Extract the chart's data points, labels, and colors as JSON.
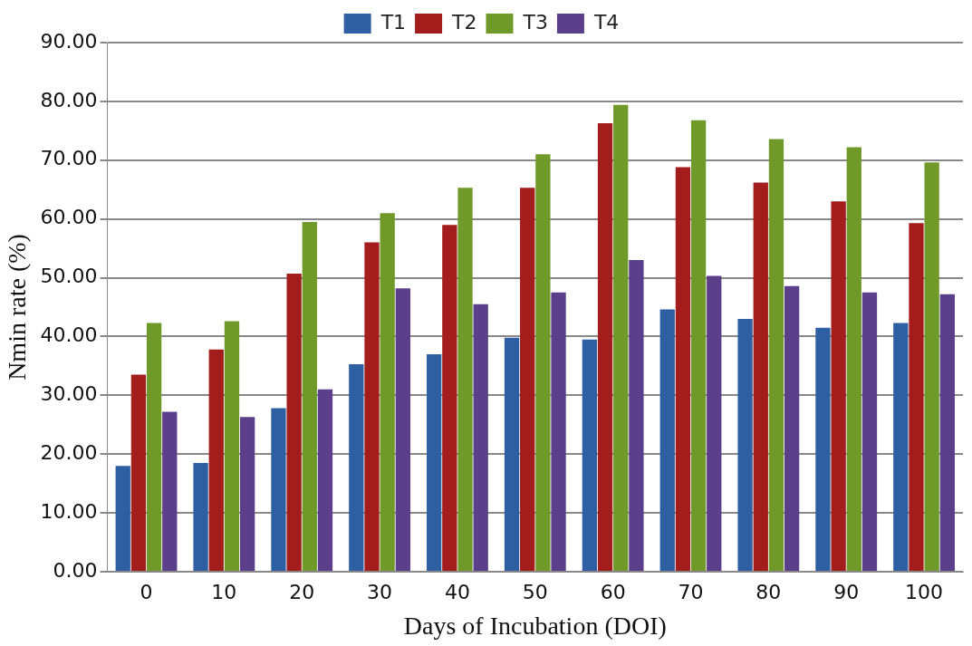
{
  "chart_data": {
    "type": "bar",
    "xlabel": "Days of Incubation (DOI)",
    "ylabel": "Nmin rate (%)",
    "categories": [
      "0",
      "10",
      "20",
      "30",
      "40",
      "50",
      "60",
      "70",
      "80",
      "90",
      "100"
    ],
    "series": [
      {
        "name": "T1",
        "color": "#2e5fa3",
        "values": [
          18,
          18.5,
          27.8,
          35.3,
          37,
          39.8,
          39.5,
          44.6,
          43,
          41.5,
          42.3
        ]
      },
      {
        "name": "T2",
        "color": "#a31d1d",
        "values": [
          33.5,
          37.8,
          50.7,
          56,
          59,
          65.3,
          76.3,
          68.8,
          66.2,
          63,
          59.3
        ]
      },
      {
        "name": "T3",
        "color": "#6f9a2a",
        "values": [
          42.3,
          42.6,
          59.5,
          61,
          65.3,
          71,
          79.4,
          76.8,
          73.6,
          72.2,
          69.6
        ]
      },
      {
        "name": "T4",
        "color": "#5b3f8a",
        "values": [
          27.2,
          26.3,
          31,
          48.2,
          45.5,
          47.5,
          53,
          50.3,
          48.6,
          47.5,
          47.2
        ]
      }
    ],
    "ylim": [
      0,
      90
    ],
    "yticks": [
      {
        "value": 0,
        "label": "0.00"
      },
      {
        "value": 10,
        "label": "10.00"
      },
      {
        "value": 20,
        "label": "20.00"
      },
      {
        "value": 30,
        "label": "30.00"
      },
      {
        "value": 40,
        "label": "40.00"
      },
      {
        "value": 50,
        "label": "50.00"
      },
      {
        "value": 60,
        "label": "60.00"
      },
      {
        "value": 70,
        "label": "70.00"
      },
      {
        "value": 80,
        "label": "80.00"
      },
      {
        "value": 90,
        "label": "90.00"
      }
    ],
    "grid": "y",
    "legend": "top"
  }
}
